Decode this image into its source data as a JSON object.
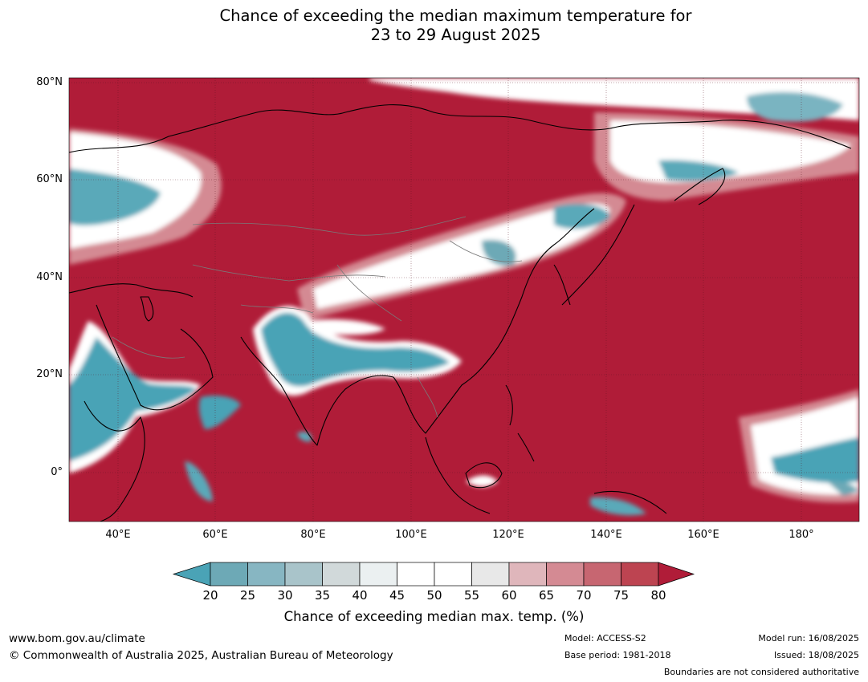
{
  "header": {
    "title_line1": "Chance of exceeding the median maximum temperature for",
    "title_line2": "23 to 29 August 2025"
  },
  "map": {
    "lon_range": [
      30,
      192
    ],
    "lat_range": [
      -10,
      81
    ],
    "lat_labels": [
      "80°N",
      "60°N",
      "40°N",
      "20°N",
      "0°"
    ],
    "lon_labels": [
      "40°E",
      "60°E",
      "80°E",
      "100°E",
      "120°E",
      "140°E",
      "160°E",
      "180°"
    ],
    "background_color": "#b01c38",
    "features": "continental coastlines and national boundaries"
  },
  "colorbar": {
    "ticks": [
      "20",
      "25",
      "30",
      "35",
      "40",
      "45",
      "50",
      "55",
      "60",
      "65",
      "70",
      "75",
      "80"
    ],
    "colors": [
      "#4aa3b6",
      "#6da9b6",
      "#87b6c2",
      "#a9c4ca",
      "#d1d9da",
      "#ebf0f1",
      "#ffffff",
      "#ffffff",
      "#e8e8e8",
      "#dfb6bb",
      "#d48a93",
      "#c76671",
      "#bd4451",
      "#b01c38"
    ],
    "label": "Chance of exceeding median max. temp. (%)"
  },
  "footer": {
    "website": "www.bom.gov.au/climate",
    "copyright": "© Commonwealth of Australia 2025, Australian Bureau of Meteorology",
    "model": "Model: ACCESS-S2",
    "base_period": "Base period: 1981-2018",
    "model_run": "Model run: 16/08/2025",
    "issued": "Issued: 18/08/2025",
    "disclaimer": "Boundaries are not considered authoritative"
  }
}
